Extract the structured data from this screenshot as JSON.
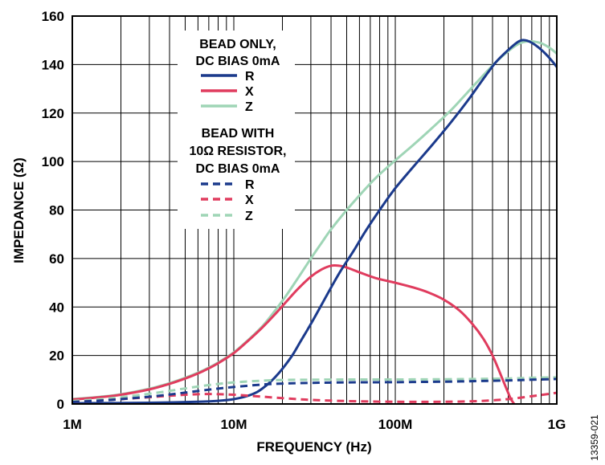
{
  "figure_id": "13359-021",
  "chart_data": {
    "type": "line",
    "xlabel": "FREQUENCY (Hz)",
    "ylabel": "IMPEDANCE (Ω)",
    "xscale": "log",
    "xlim": [
      1000000.0,
      1000000000.0
    ],
    "ylim": [
      0,
      160
    ],
    "xticks": [
      {
        "value": 1000000.0,
        "label": "1M"
      },
      {
        "value": 10000000.0,
        "label": "10M"
      },
      {
        "value": 100000000.0,
        "label": "100M"
      },
      {
        "value": 1000000000.0,
        "label": "1G"
      }
    ],
    "yticks": [
      0,
      20,
      40,
      60,
      80,
      100,
      120,
      140,
      160
    ],
    "grid": true,
    "minor_grid": true,
    "legend": {
      "position": "upper-left",
      "groups": [
        {
          "heading": [
            "BEAD ONLY,",
            "DC BIAS 0mA"
          ]
        },
        {
          "heading": [
            "BEAD WITH",
            "10Ω RESISTOR,",
            "DC BIAS 0mA"
          ]
        }
      ]
    },
    "series": [
      {
        "name": "R",
        "group": 0,
        "style": "solid",
        "color": "#1b3a8c",
        "points": [
          [
            1000000.0,
            0.3
          ],
          [
            3000000.0,
            0.5
          ],
          [
            6000000.0,
            0.9
          ],
          [
            8000000.0,
            1.3
          ],
          [
            10000000.0,
            2
          ],
          [
            12000000.0,
            3.2
          ],
          [
            14000000.0,
            5
          ],
          [
            16000000.0,
            7.8
          ],
          [
            18000000.0,
            11
          ],
          [
            20000000.0,
            14.5
          ],
          [
            23000000.0,
            20
          ],
          [
            26000000.0,
            26
          ],
          [
            30000000.0,
            33
          ],
          [
            35000000.0,
            41
          ],
          [
            40000000.0,
            48
          ],
          [
            46000000.0,
            55
          ],
          [
            55000000.0,
            63
          ],
          [
            65000000.0,
            71
          ],
          [
            80000000.0,
            80
          ],
          [
            100000000.0,
            89
          ],
          [
            130000000.0,
            98
          ],
          [
            170000000.0,
            107
          ],
          [
            220000000.0,
            116
          ],
          [
            280000000.0,
            125
          ],
          [
            350000000.0,
            134
          ],
          [
            420000000.0,
            141
          ],
          [
            500000000.0,
            146
          ],
          [
            580000000.0,
            149.5
          ],
          [
            640000000.0,
            150
          ],
          [
            720000000.0,
            148.5
          ],
          [
            820000000.0,
            145.5
          ],
          [
            920000000.0,
            142
          ],
          [
            1000000000.0,
            139
          ]
        ]
      },
      {
        "name": "X",
        "group": 0,
        "style": "solid",
        "color": "#e03c5e",
        "points": [
          [
            1000000.0,
            1.8
          ],
          [
            1500000.0,
            2.8
          ],
          [
            2000000.0,
            3.8
          ],
          [
            3000000.0,
            6
          ],
          [
            4000000.0,
            8.3
          ],
          [
            5000000.0,
            10.5
          ],
          [
            6000000.0,
            12.6
          ],
          [
            7000000.0,
            14.7
          ],
          [
            8000000.0,
            16.8
          ],
          [
            10000000.0,
            21
          ],
          [
            12000000.0,
            25.5
          ],
          [
            15000000.0,
            31.5
          ],
          [
            18000000.0,
            37
          ],
          [
            21000000.0,
            42
          ],
          [
            25000000.0,
            47.5
          ],
          [
            30000000.0,
            52.5
          ],
          [
            35000000.0,
            55.5
          ],
          [
            40000000.0,
            57
          ],
          [
            45000000.0,
            57
          ],
          [
            50000000.0,
            56.3
          ],
          [
            60000000.0,
            54.3
          ],
          [
            75000000.0,
            52
          ],
          [
            100000000.0,
            50
          ],
          [
            130000000.0,
            48
          ],
          [
            160000000.0,
            46
          ],
          [
            200000000.0,
            43
          ],
          [
            250000000.0,
            38.5
          ],
          [
            300000000.0,
            33
          ],
          [
            350000000.0,
            27
          ],
          [
            400000000.0,
            20
          ],
          [
            450000000.0,
            12
          ],
          [
            490000000.0,
            6
          ],
          [
            520000000.0,
            2
          ],
          [
            545000000.0,
            0
          ]
        ]
      },
      {
        "name": "Z",
        "group": 0,
        "style": "solid",
        "color": "#9fd5b6",
        "points": [
          [
            1000000.0,
            2
          ],
          [
            1500000.0,
            3
          ],
          [
            2000000.0,
            4
          ],
          [
            3000000.0,
            6.3
          ],
          [
            4000000.0,
            8.6
          ],
          [
            5000000.0,
            10.8
          ],
          [
            6000000.0,
            12.9
          ],
          [
            7000000.0,
            15
          ],
          [
            8000000.0,
            17.1
          ],
          [
            10000000.0,
            21.3
          ],
          [
            12000000.0,
            25.8
          ],
          [
            15000000.0,
            32
          ],
          [
            18000000.0,
            38.5
          ],
          [
            21000000.0,
            44.5
          ],
          [
            25000000.0,
            52
          ],
          [
            30000000.0,
            60
          ],
          [
            35000000.0,
            66.5
          ],
          [
            40000000.0,
            72
          ],
          [
            50000000.0,
            80
          ],
          [
            60000000.0,
            86
          ],
          [
            75000000.0,
            93
          ],
          [
            100000000.0,
            100.5
          ],
          [
            130000000.0,
            107
          ],
          [
            170000000.0,
            114
          ],
          [
            220000000.0,
            121
          ],
          [
            280000000.0,
            128.5
          ],
          [
            350000000.0,
            135.5
          ],
          [
            420000000.0,
            141
          ],
          [
            500000000.0,
            145.5
          ],
          [
            580000000.0,
            148.5
          ],
          [
            650000000.0,
            149.5
          ],
          [
            720000000.0,
            149.5
          ],
          [
            820000000.0,
            148.5
          ],
          [
            920000000.0,
            146.5
          ],
          [
            1000000000.0,
            144.5
          ]
        ]
      },
      {
        "name": "R",
        "group": 1,
        "style": "dashed",
        "color": "#1b3a8c",
        "points": [
          [
            1000000.0,
            0.8
          ],
          [
            1500000.0,
            1.4
          ],
          [
            2000000.0,
            2
          ],
          [
            3000000.0,
            3
          ],
          [
            4000000.0,
            3.9
          ],
          [
            5000000.0,
            4.7
          ],
          [
            7000000.0,
            5.9
          ],
          [
            10000000.0,
            7
          ],
          [
            15000000.0,
            8
          ],
          [
            20000000.0,
            8.4
          ],
          [
            30000000.0,
            8.7
          ],
          [
            50000000.0,
            8.9
          ],
          [
            100000000.0,
            9
          ],
          [
            200000000.0,
            9.2
          ],
          [
            300000000.0,
            9.4
          ],
          [
            500000000.0,
            9.7
          ],
          [
            700000000.0,
            10
          ],
          [
            1000000000.0,
            10.3
          ]
        ]
      },
      {
        "name": "X",
        "group": 1,
        "style": "dashed",
        "color": "#e03c5e",
        "points": [
          [
            1000000.0,
            0.8
          ],
          [
            1500000.0,
            1.4
          ],
          [
            2000000.0,
            2
          ],
          [
            3000000.0,
            2.8
          ],
          [
            4000000.0,
            3.4
          ],
          [
            5000000.0,
            3.8
          ],
          [
            7000000.0,
            4.1
          ],
          [
            10000000.0,
            3.8
          ],
          [
            15000000.0,
            3
          ],
          [
            20000000.0,
            2.4
          ],
          [
            30000000.0,
            1.7
          ],
          [
            50000000.0,
            1.2
          ],
          [
            100000000.0,
            0.9
          ],
          [
            200000000.0,
            0.9
          ],
          [
            300000000.0,
            1.1
          ],
          [
            400000000.0,
            1.5
          ],
          [
            500000000.0,
            2
          ],
          [
            700000000.0,
            3.2
          ],
          [
            1000000000.0,
            4.6
          ]
        ]
      },
      {
        "name": "Z",
        "group": 1,
        "style": "dashed",
        "color": "#9fd5b6",
        "points": [
          [
            1000000.0,
            1.2
          ],
          [
            1500000.0,
            2
          ],
          [
            2000000.0,
            2.8
          ],
          [
            3000000.0,
            4.2
          ],
          [
            4000000.0,
            5.4
          ],
          [
            5000000.0,
            6.4
          ],
          [
            7000000.0,
            7.8
          ],
          [
            10000000.0,
            8.9
          ],
          [
            15000000.0,
            9.6
          ],
          [
            20000000.0,
            9.9
          ],
          [
            30000000.0,
            10
          ],
          [
            50000000.0,
            10.1
          ],
          [
            100000000.0,
            10.1
          ],
          [
            200000000.0,
            10.2
          ],
          [
            300000000.0,
            10.3
          ],
          [
            500000000.0,
            10.5
          ],
          [
            700000000.0,
            10.8
          ],
          [
            1000000000.0,
            11
          ]
        ]
      }
    ]
  }
}
